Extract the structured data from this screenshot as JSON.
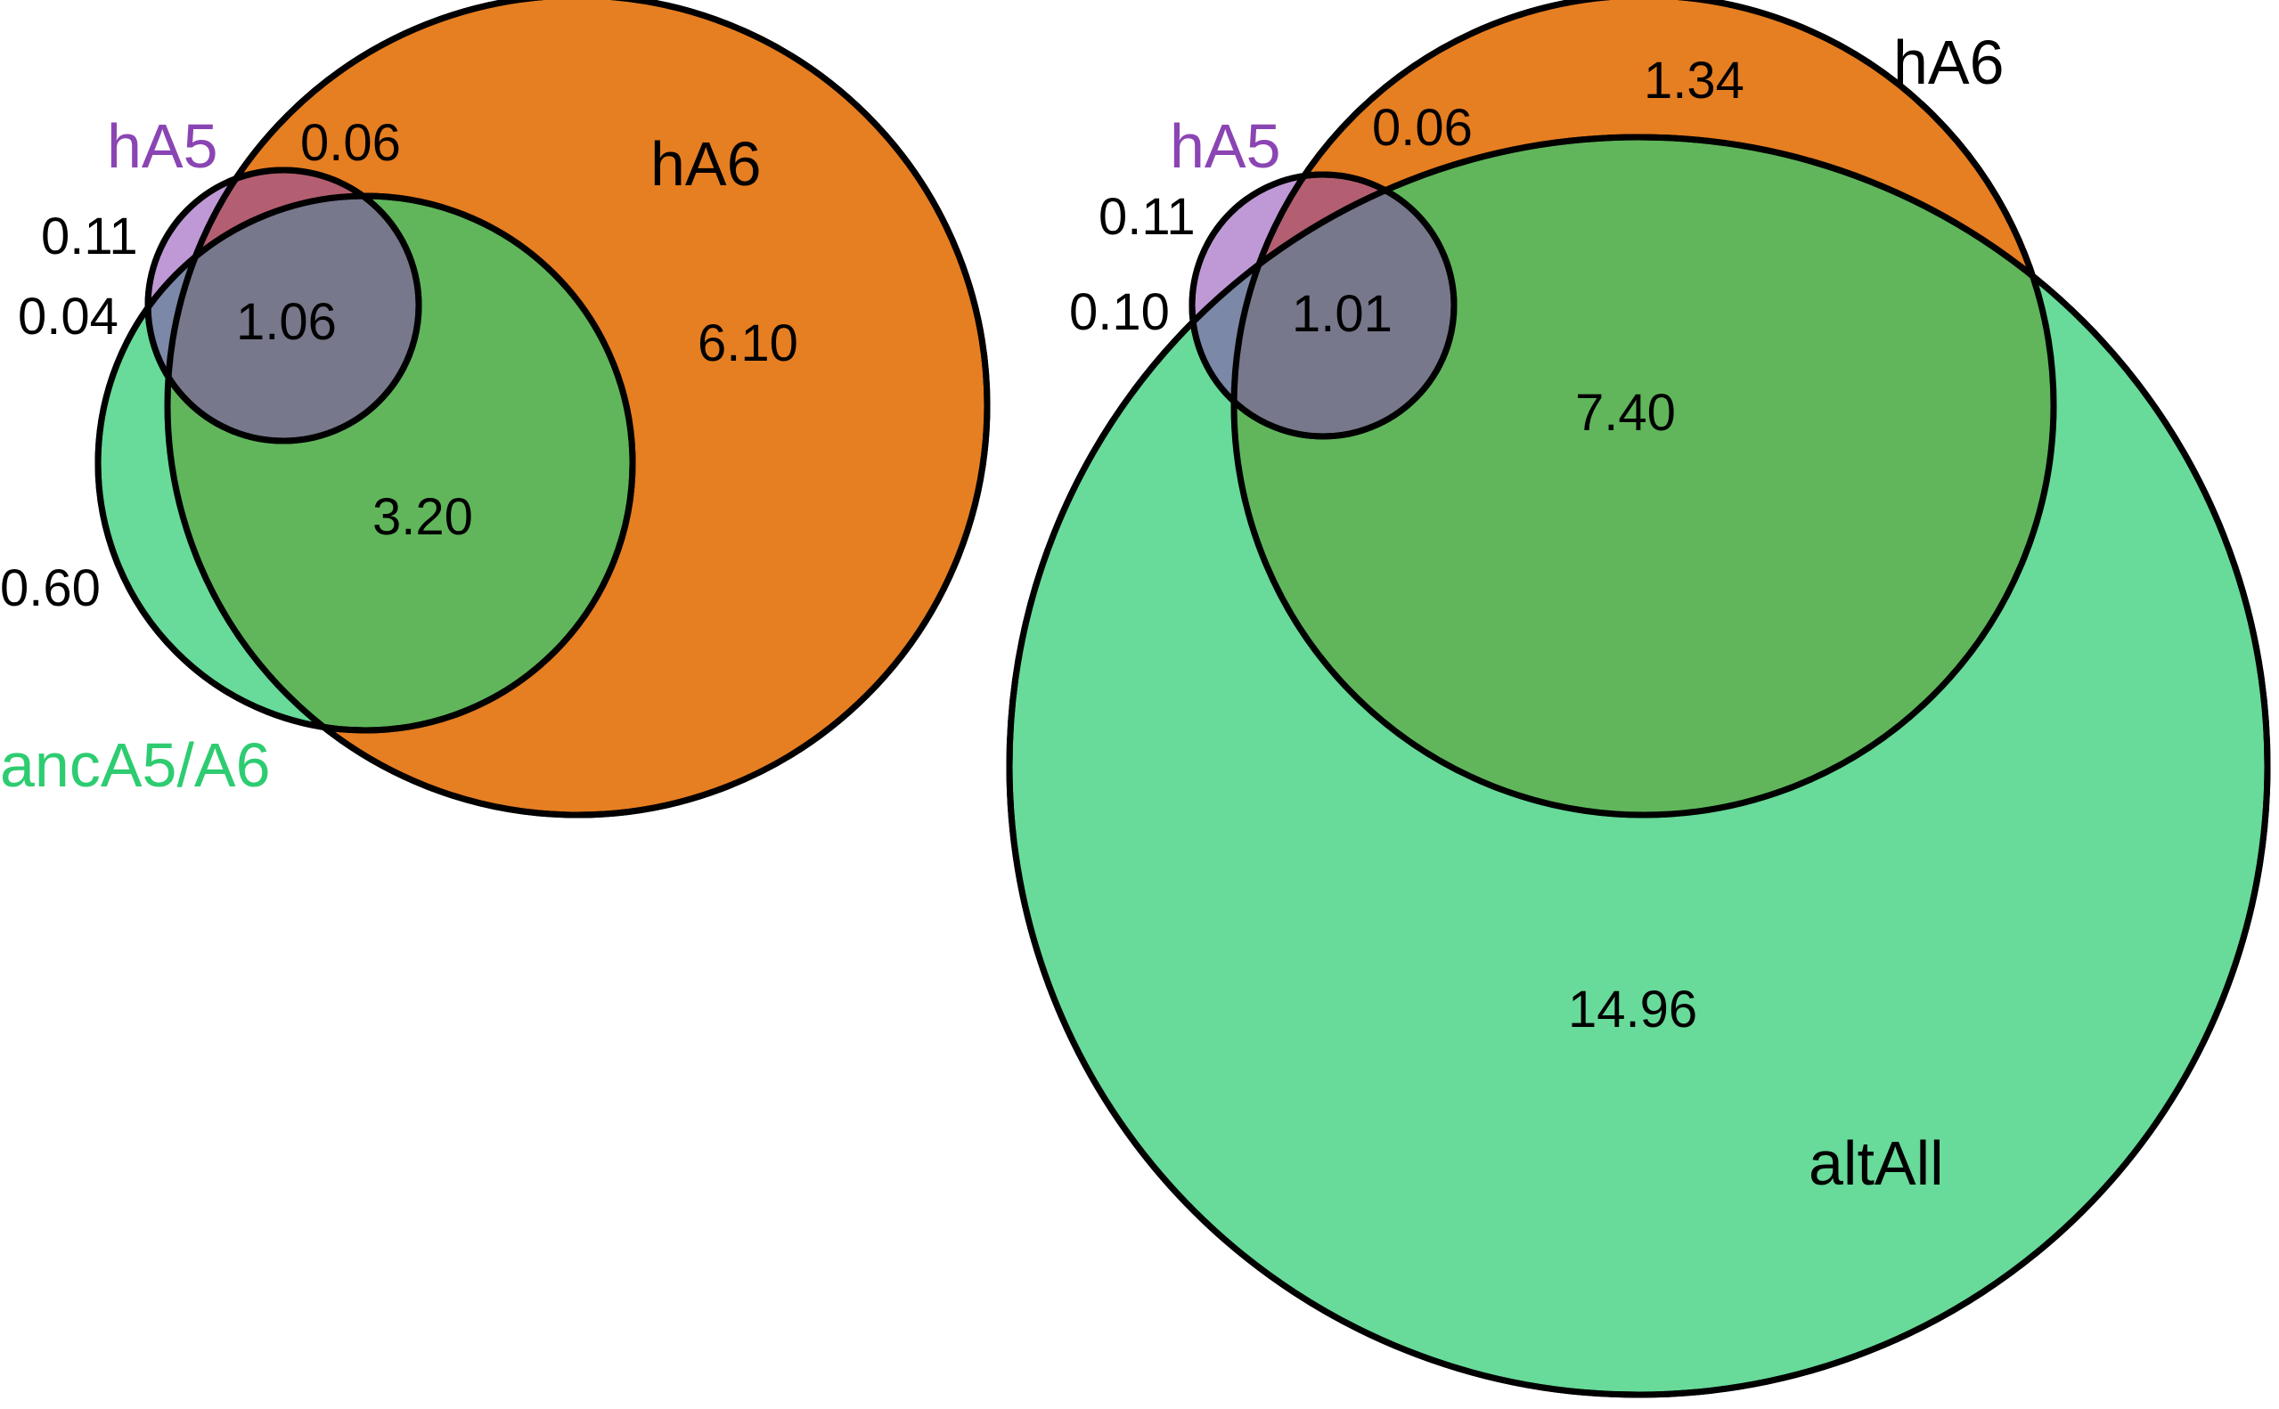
{
  "colors": {
    "hA5": "#8b45b3",
    "hA6": "#e67e22",
    "green": "#2ecc71",
    "ancA5A6_label": "#2ecc71",
    "hA6_label": "#000000",
    "hA5_label": "#8b45b3",
    "altAll_label": "#000000"
  },
  "diagrams": [
    {
      "sets": {
        "hA5": "hA5",
        "hA6": "hA6",
        "ancA5A6": "ancA5/A6"
      },
      "regions": {
        "hA5_only": "0.11",
        "hA5_hA6": "0.06",
        "hA5_ancA5A6": "0.04",
        "hA5_hA6_ancA5A6": "1.06",
        "hA6_only": "6.10",
        "hA6_ancA5A6": "3.20",
        "ancA5A6_only": "0.60"
      }
    },
    {
      "sets": {
        "hA5": "hA5",
        "hA6": "hA6",
        "altAll": "altAll"
      },
      "regions": {
        "hA5_only": "0.11",
        "hA5_hA6": "0.06",
        "hA6_only": "1.34",
        "hA5_altAll": "0.10",
        "hA5_hA6_altAll": "1.01",
        "hA6_altAll": "7.40",
        "altAll_only": "14.96"
      }
    }
  ]
}
